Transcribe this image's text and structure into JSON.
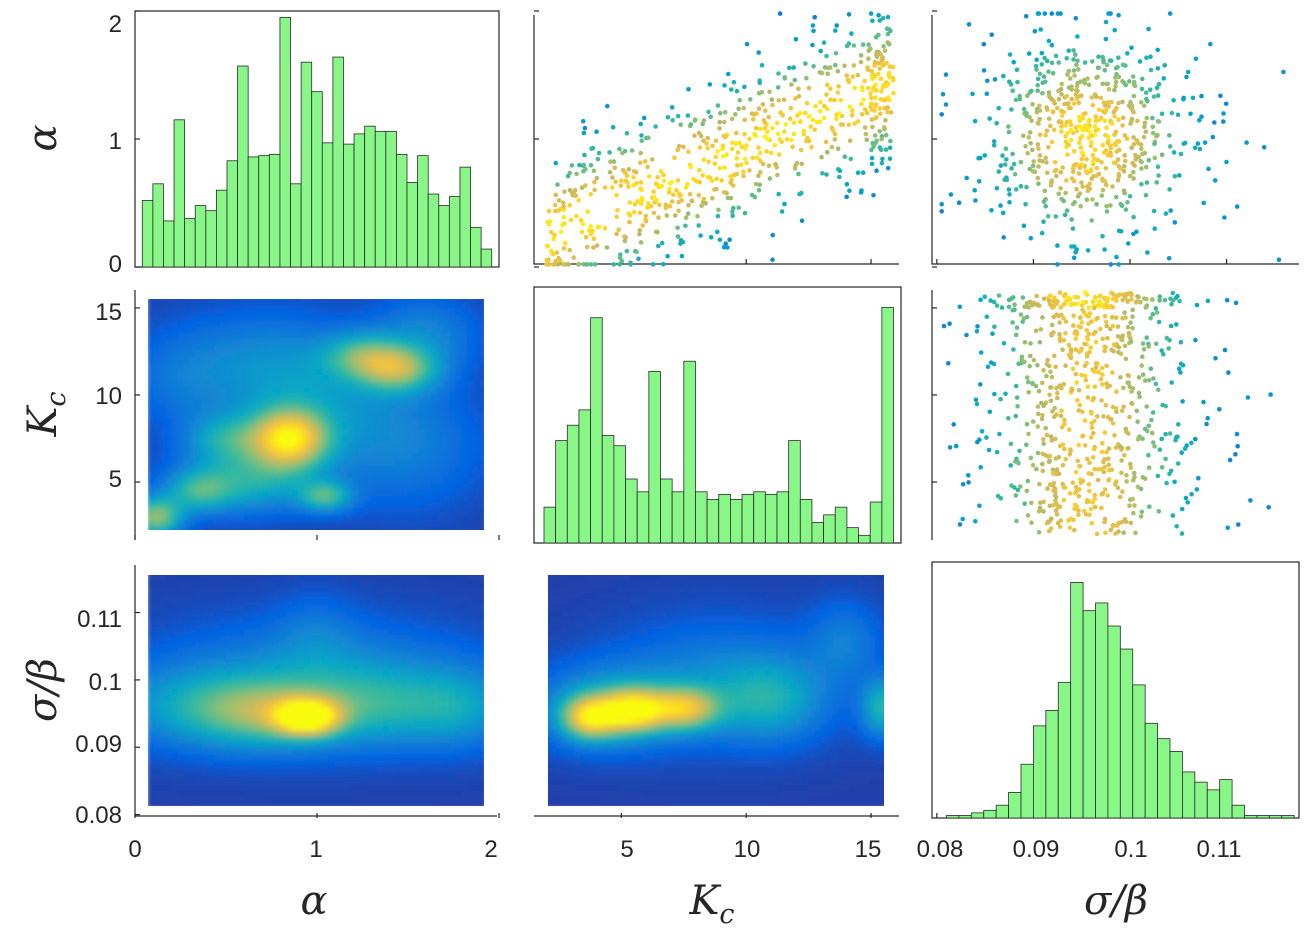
{
  "chart_data": {
    "type": "scatter-matrix",
    "variables": [
      {
        "key": "alpha",
        "label": "α",
        "range": [
          0,
          2
        ],
        "ticks": [
          0,
          1,
          2
        ],
        "tick_labels": [
          "0",
          "1",
          "2"
        ]
      },
      {
        "key": "Kc",
        "label_main": "K",
        "label_sub": "c",
        "range": [
          1.5,
          16.2
        ],
        "ticks": [
          5,
          10,
          15
        ],
        "tick_labels": [
          "5",
          "10",
          "15"
        ]
      },
      {
        "key": "sigma_beta",
        "label": "σ/β",
        "range": [
          0.0795,
          0.1175
        ],
        "ticks": [
          0.08,
          0.09,
          0.1,
          0.11
        ],
        "tick_labels": [
          "0.08",
          "0.09",
          "0.1",
          "0.11"
        ]
      }
    ],
    "histograms": [
      {
        "variable": "alpha",
        "panel": "row1-col1",
        "bin_range": [
          0.04,
          1.96
        ],
        "values": [
          0.52,
          0.65,
          0.36,
          1.15,
          0.38,
          0.48,
          0.44,
          0.6,
          0.83,
          1.57,
          0.86,
          0.87,
          0.88,
          1.95,
          0.65,
          1.6,
          1.37,
          0.97,
          1.64,
          0.96,
          1.04,
          1.1,
          1.06,
          1.06,
          0.88,
          0.66,
          0.87,
          0.57,
          0.48,
          0.55,
          0.78,
          0.31,
          0.14
        ],
        "ylim": [
          0,
          2
        ],
        "yticks": [
          0,
          1,
          2
        ],
        "ytick_labels": [
          "0",
          "1",
          "2"
        ]
      },
      {
        "variable": "Kc",
        "panel": "row2-col2",
        "bin_range": [
          1.9,
          15.9
        ],
        "values": [
          0.14,
          0.4,
          0.46,
          0.52,
          0.88,
          0.42,
          0.38,
          0.25,
          0.2,
          0.67,
          0.25,
          0.2,
          0.71,
          0.2,
          0.17,
          0.19,
          0.17,
          0.19,
          0.2,
          0.19,
          0.2,
          0.4,
          0.17,
          0.08,
          0.11,
          0.14,
          0.06,
          0.03,
          0.16,
          0.92
        ],
        "ylim": [
          0,
          1
        ]
      },
      {
        "variable": "sigma_beta",
        "panel": "row3-col3",
        "bin_range": [
          0.081,
          0.117
        ],
        "values": [
          0.01,
          0.01,
          0.02,
          0.03,
          0.05,
          0.1,
          0.21,
          0.36,
          0.42,
          0.53,
          0.92,
          0.81,
          0.84,
          0.75,
          0.66,
          0.52,
          0.37,
          0.31,
          0.26,
          0.18,
          0.14,
          0.11,
          0.15,
          0.05,
          0.01,
          0.01,
          0.01,
          0.01
        ],
        "ylim": [
          0,
          1
        ]
      }
    ],
    "density_plots": [
      {
        "panel": "row2-col1",
        "x": "alpha",
        "y": "Kc",
        "x_extent": [
          0.07,
          1.93
        ],
        "y_extent": [
          1.8,
          15.7
        ],
        "peaks": [
          {
            "x": 0.85,
            "y": 7.5,
            "sx": 0.15,
            "sy": 1.2,
            "w": 1.0
          },
          {
            "x": 0.12,
            "y": 3.0,
            "sx": 0.1,
            "sy": 0.8,
            "w": 0.72
          },
          {
            "x": 1.45,
            "y": 11.5,
            "sx": 0.15,
            "sy": 0.9,
            "w": 0.62
          },
          {
            "x": 1.25,
            "y": 12.3,
            "sx": 0.15,
            "sy": 0.9,
            "w": 0.45
          },
          {
            "x": 1.05,
            "y": 4.2,
            "sx": 0.1,
            "sy": 0.6,
            "w": 0.52
          },
          {
            "x": 0.6,
            "y": 5.0,
            "sx": 0.25,
            "sy": 1.2,
            "w": 0.45
          },
          {
            "x": 0.5,
            "y": 7.5,
            "sx": 0.15,
            "sy": 1.0,
            "w": 0.38
          },
          {
            "x": 0.35,
            "y": 4.5,
            "sx": 0.12,
            "sy": 0.8,
            "w": 0.38
          },
          {
            "x": 1.0,
            "y": 9.5,
            "sx": 0.35,
            "sy": 2.5,
            "w": 0.25
          },
          {
            "x": 0.7,
            "y": 12.0,
            "sx": 0.3,
            "sy": 2.0,
            "w": 0.22
          },
          {
            "x": 1.5,
            "y": 7.0,
            "sx": 0.3,
            "sy": 2.5,
            "w": 0.2
          },
          {
            "x": 1.6,
            "y": 13.5,
            "sx": 0.2,
            "sy": 1.5,
            "w": 0.25
          },
          {
            "x": 0.25,
            "y": 11.0,
            "sx": 0.2,
            "sy": 2.0,
            "w": 0.15
          }
        ]
      },
      {
        "panel": "row3-col1",
        "x": "alpha",
        "y": "sigma_beta",
        "x_extent": [
          0.07,
          1.93
        ],
        "y_extent": [
          0.081,
          0.1165
        ],
        "peaks": [
          {
            "x": 0.95,
            "y": 0.0945,
            "sx": 0.12,
            "sy": 0.0018,
            "w": 1.0
          },
          {
            "x": 0.7,
            "y": 0.095,
            "sx": 0.25,
            "sy": 0.0035,
            "w": 0.45
          },
          {
            "x": 1.3,
            "y": 0.096,
            "sx": 0.35,
            "sy": 0.004,
            "w": 0.35
          },
          {
            "x": 0.3,
            "y": 0.096,
            "sx": 0.3,
            "sy": 0.004,
            "w": 0.3
          },
          {
            "x": 1.0,
            "y": 0.1,
            "sx": 0.6,
            "sy": 0.006,
            "w": 0.3
          },
          {
            "x": 1.8,
            "y": 0.096,
            "sx": 0.2,
            "sy": 0.004,
            "w": 0.25
          },
          {
            "x": 1.0,
            "y": 0.107,
            "sx": 0.15,
            "sy": 0.004,
            "w": 0.12
          }
        ]
      },
      {
        "panel": "row3-col2",
        "x": "Kc",
        "y": "sigma_beta",
        "x_extent": [
          1.9,
          15.7
        ],
        "y_extent": [
          0.081,
          0.1165
        ],
        "peaks": [
          {
            "x": 3.8,
            "y": 0.0945,
            "sx": 0.8,
            "sy": 0.0022,
            "w": 0.85
          },
          {
            "x": 5.5,
            "y": 0.0955,
            "sx": 0.8,
            "sy": 0.0022,
            "w": 0.82
          },
          {
            "x": 7.5,
            "y": 0.0958,
            "sx": 1.0,
            "sy": 0.0022,
            "w": 0.75
          },
          {
            "x": 4.5,
            "y": 0.096,
            "sx": 2.0,
            "sy": 0.004,
            "w": 0.4
          },
          {
            "x": 11.0,
            "y": 0.097,
            "sx": 1.5,
            "sy": 0.004,
            "w": 0.35
          },
          {
            "x": 15.5,
            "y": 0.096,
            "sx": 0.6,
            "sy": 0.003,
            "w": 0.5
          },
          {
            "x": 9.0,
            "y": 0.1,
            "sx": 3.0,
            "sy": 0.006,
            "w": 0.25
          },
          {
            "x": 14.0,
            "y": 0.106,
            "sx": 1.0,
            "sy": 0.004,
            "w": 0.2
          }
        ]
      }
    ],
    "scatter_plots": [
      {
        "panel": "row1-col2",
        "x": "Kc",
        "y": "alpha",
        "color": "density",
        "n_points": 720,
        "seed": 11
      },
      {
        "panel": "row1-col3",
        "x": "sigma_beta",
        "y": "alpha",
        "color": "density",
        "n_points": 620,
        "seed": 23
      },
      {
        "panel": "row2-col3",
        "x": "sigma_beta",
        "y": "Kc",
        "color": "density",
        "n_points": 760,
        "seed": 37
      }
    ],
    "colormap": [
      "#352a87",
      "#0363e1",
      "#1485d4",
      "#06a7c6",
      "#38b99e",
      "#92bf73",
      "#d9ba56",
      "#fcce2e",
      "#f9fb0e"
    ],
    "histogram_color": "#88f788"
  }
}
